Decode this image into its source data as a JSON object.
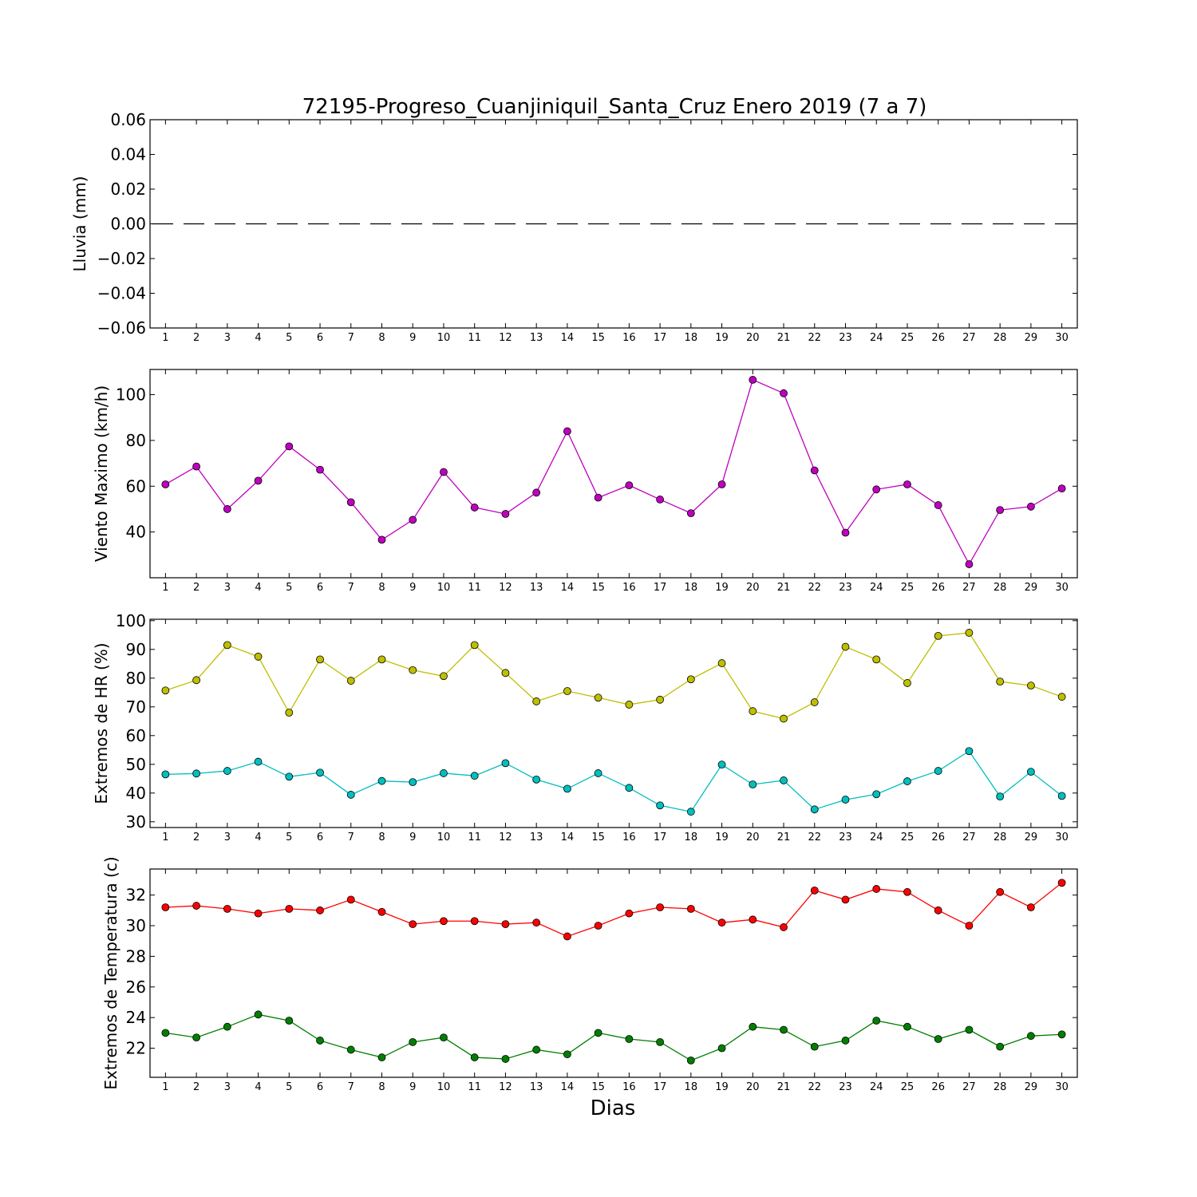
{
  "title": "72195-Progreso_Cuanjiniquil_Santa_Cruz Enero 2019  (7 a 7)",
  "xlabel": "Dias",
  "chart_data": [
    {
      "type": "line",
      "ylabel": "Lluvia (mm)",
      "ylim": [
        -0.06,
        0.06
      ],
      "yticks": [
        -0.06,
        -0.04,
        -0.02,
        0.0,
        0.02,
        0.04,
        0.06
      ],
      "ytick_labels": [
        "−0.06",
        "−0.04",
        "−0.02",
        "0.00",
        "0.02",
        "0.04",
        "0.06"
      ],
      "x": [
        1,
        2,
        3,
        4,
        5,
        6,
        7,
        8,
        9,
        10,
        11,
        12,
        13,
        14,
        15,
        16,
        17,
        18,
        19,
        20,
        21,
        22,
        23,
        24,
        25,
        26,
        27,
        28,
        29,
        30
      ],
      "grid": false,
      "series": [
        {
          "color": "#000000",
          "style": "dashed",
          "markers": false,
          "values": [
            0,
            0,
            0,
            0,
            0,
            0,
            0,
            0,
            0,
            0,
            0,
            0,
            0,
            0,
            0,
            0,
            0,
            0,
            0,
            0,
            0,
            0,
            0,
            0,
            0,
            0,
            0,
            0,
            0,
            0
          ]
        }
      ]
    },
    {
      "type": "line",
      "ylabel": "Viento Maximo (km/h)",
      "ylim": [
        20,
        111
      ],
      "yticks": [
        40,
        60,
        80,
        100
      ],
      "ytick_labels": [
        "40",
        "60",
        "80",
        "100"
      ],
      "x": [
        1,
        2,
        3,
        4,
        5,
        6,
        7,
        8,
        9,
        10,
        11,
        12,
        13,
        14,
        15,
        16,
        17,
        18,
        19,
        20,
        21,
        22,
        23,
        24,
        25,
        26,
        27,
        28,
        29,
        30
      ],
      "grid": false,
      "series": [
        {
          "color": "#bf00bf",
          "style": "solid",
          "markers": true,
          "values": [
            60.8,
            68.6,
            50.0,
            62.4,
            77.4,
            67.2,
            53.0,
            36.6,
            45.3,
            66.2,
            50.7,
            47.9,
            57.2,
            84.0,
            55.0,
            60.4,
            54.2,
            48.2,
            60.8,
            106.5,
            100.6,
            66.9,
            39.7,
            58.6,
            60.8,
            51.7,
            25.9,
            49.6,
            51.1,
            59.0
          ]
        }
      ]
    },
    {
      "type": "line",
      "ylabel": "Extremos de HR (%)",
      "ylim": [
        28,
        100.5
      ],
      "yticks": [
        30,
        40,
        50,
        60,
        70,
        80,
        90,
        100
      ],
      "ytick_labels": [
        "30",
        "40",
        "50",
        "60",
        "70",
        "80",
        "90",
        "100"
      ],
      "x": [
        1,
        2,
        3,
        4,
        5,
        6,
        7,
        8,
        9,
        10,
        11,
        12,
        13,
        14,
        15,
        16,
        17,
        18,
        19,
        20,
        21,
        22,
        23,
        24,
        25,
        26,
        27,
        28,
        29,
        30
      ],
      "grid": false,
      "series": [
        {
          "color": "#bfbf00",
          "style": "solid",
          "markers": true,
          "values": [
            75.7,
            79.3,
            91.5,
            87.5,
            68.0,
            86.5,
            79.1,
            86.5,
            82.8,
            80.7,
            91.5,
            81.8,
            71.9,
            75.5,
            73.2,
            70.8,
            72.5,
            79.6,
            85.2,
            68.5,
            65.9,
            71.6,
            90.9,
            86.5,
            78.3,
            94.7,
            95.8,
            78.8,
            77.4,
            73.5
          ]
        },
        {
          "color": "#00bfbf",
          "style": "solid",
          "markers": true,
          "values": [
            46.5,
            46.8,
            47.7,
            50.9,
            45.7,
            47.1,
            39.4,
            44.2,
            43.8,
            46.9,
            46.0,
            50.4,
            44.7,
            41.5,
            46.9,
            41.8,
            35.7,
            33.5,
            49.9,
            43.0,
            44.4,
            34.3,
            37.7,
            39.6,
            44.1,
            47.7,
            54.6,
            38.8,
            47.4,
            39.0
          ]
        }
      ]
    },
    {
      "type": "line",
      "ylabel": "Extremos de Temperatura (c)",
      "ylim": [
        20.1,
        33.7
      ],
      "yticks": [
        22,
        24,
        26,
        28,
        30,
        32
      ],
      "ytick_labels": [
        "22",
        "24",
        "26",
        "28",
        "30",
        "32"
      ],
      "x": [
        1,
        2,
        3,
        4,
        5,
        6,
        7,
        8,
        9,
        10,
        11,
        12,
        13,
        14,
        15,
        16,
        17,
        18,
        19,
        20,
        21,
        22,
        23,
        24,
        25,
        26,
        27,
        28,
        29,
        30
      ],
      "grid": false,
      "series": [
        {
          "color": "#ff0000",
          "style": "solid",
          "markers": true,
          "values": [
            31.2,
            31.3,
            31.1,
            30.8,
            31.1,
            31.0,
            31.7,
            30.9,
            30.1,
            30.3,
            30.3,
            30.1,
            30.2,
            29.3,
            30.0,
            30.8,
            31.2,
            31.1,
            30.2,
            30.4,
            29.9,
            32.3,
            31.7,
            32.4,
            32.2,
            31.0,
            30.0,
            32.2,
            31.2,
            32.8
          ]
        },
        {
          "color": "#007f00",
          "style": "solid",
          "markers": true,
          "values": [
            23.0,
            22.7,
            23.4,
            24.2,
            23.8,
            22.5,
            21.9,
            21.4,
            22.4,
            22.7,
            21.4,
            21.3,
            21.9,
            21.6,
            23.0,
            22.6,
            22.4,
            21.2,
            22.0,
            23.4,
            23.2,
            22.1,
            22.5,
            23.8,
            23.4,
            22.6,
            23.2,
            22.1,
            22.8,
            22.9
          ]
        }
      ]
    }
  ]
}
